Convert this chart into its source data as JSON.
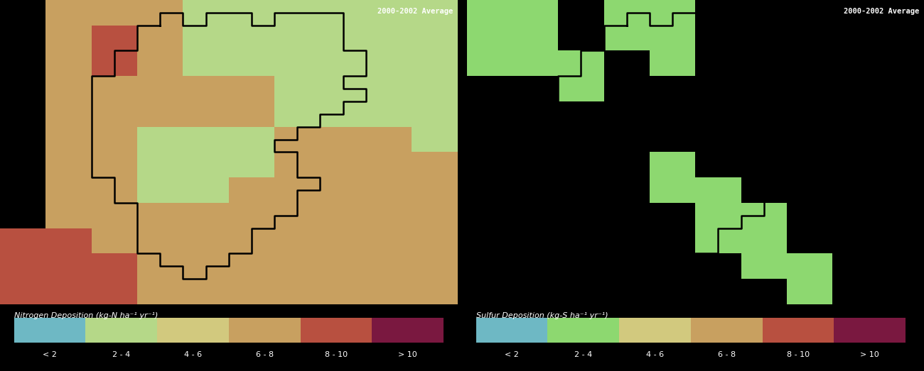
{
  "title": "2000-2002 Average",
  "left_label": "Nitrogen Deposition (kg-N ha⁻¹ yr⁻¹)",
  "right_label": "Sulfur Deposition (kg-S ha⁻¹ yr⁻¹)",
  "legend_categories": [
    "< 2",
    "2 - 4",
    "4 - 6",
    "6 - 8",
    "8 - 10",
    "> 10"
  ],
  "n_colors": [
    "#6eb8c4",
    "#b5d888",
    "#d2c97e",
    "#c8a060",
    "#b85040",
    "#7a1840"
  ],
  "s_colors": [
    "#6eb8c4",
    "#8dd870",
    "#d2c97e",
    "#c8a060",
    "#b85040",
    "#7a1840"
  ],
  "background": "#000000",
  "n_bg": "#b5d888",
  "s_bg": "#5fa8b0",
  "n_tan": "#c8a060",
  "n_brick": "#b85040",
  "s_green": "#8dd870",
  "anno_color": "#ffffff",
  "map_cols": 10,
  "map_rows": 12
}
